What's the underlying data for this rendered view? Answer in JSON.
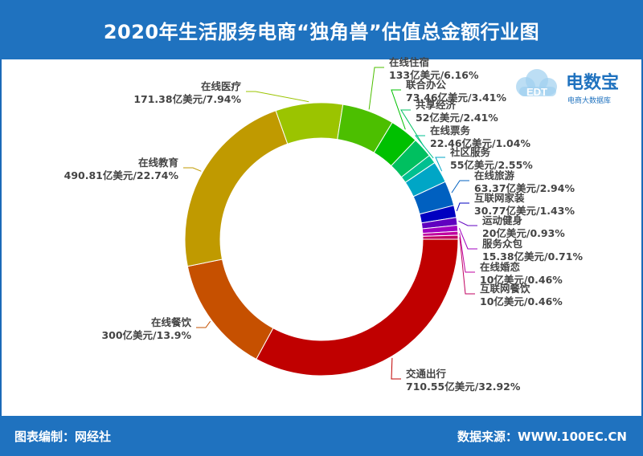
{
  "header": {
    "title": "2020年生活服务电商“独角兽”估值总金额行业图"
  },
  "footer": {
    "left": "图表编制：网经社",
    "right": "数据来源：WWW.100EC.CN"
  },
  "logo": {
    "name": "电数宝",
    "tag": "电商大数据库",
    "mark": "EDT"
  },
  "chart_data": {
    "type": "pie",
    "donut": true,
    "slices": [
      {
        "name": "交通出行",
        "value": 710.55,
        "label": "710.55亿美元/32.92%",
        "color": "#c00000"
      },
      {
        "name": "在线餐饮",
        "value": 300,
        "label": "300亿美元/13.9%",
        "color": "#c65000"
      },
      {
        "name": "在线教育",
        "value": 490.81,
        "label": "490.81亿美元/22.74%",
        "color": "#c09a00"
      },
      {
        "name": "在线医疗",
        "value": 171.38,
        "label": "171.38亿美元/7.94%",
        "color": "#9bc400"
      },
      {
        "name": "在线住宿",
        "value": 133,
        "label": "133亿美元/6.16%",
        "color": "#4cbf00"
      },
      {
        "name": "联合办公",
        "value": 73.46,
        "label": "73.46亿美元/3.41%",
        "color": "#00c000"
      },
      {
        "name": "共享经济",
        "value": 52,
        "label": "52亿美元/2.41%",
        "color": "#00c060"
      },
      {
        "name": "在线票务",
        "value": 22.46,
        "label": "22.46亿美元/1.04%",
        "color": "#00c090"
      },
      {
        "name": "社区服务",
        "value": 55,
        "label": "55亿美元/2.55%",
        "color": "#00a6c6"
      },
      {
        "name": "在线旅游",
        "value": 63.37,
        "label": "63.37亿美元/2.94%",
        "color": "#0060c0"
      },
      {
        "name": "互联网家装",
        "value": 30.77,
        "label": "30.77亿美元/1.43%",
        "color": "#0000c0"
      },
      {
        "name": "运动健身",
        "value": 20,
        "label": "20亿美元/0.93%",
        "color": "#6000c0"
      },
      {
        "name": "服务众包",
        "value": 15.38,
        "label": "15.38亿美元/0.71%",
        "color": "#a000c0"
      },
      {
        "name": "在线婚恋",
        "value": 10,
        "label": "10亿美元/0.46%",
        "color": "#c000a0"
      },
      {
        "name": "互联网餐饮",
        "value": 10,
        "label": "10亿美元/0.46%",
        "color": "#c00060"
      }
    ]
  }
}
